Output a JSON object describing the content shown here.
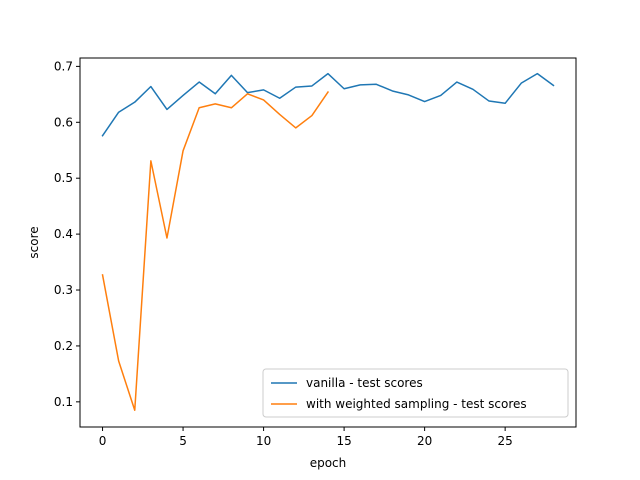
{
  "chart_data": {
    "type": "line",
    "title": "",
    "xlabel": "epoch",
    "ylabel": "score",
    "xlim": [
      -1.4,
      29.4
    ],
    "ylim": [
      0.055,
      0.715
    ],
    "xticks": [
      0,
      5,
      10,
      15,
      20,
      25
    ],
    "xtick_labels": [
      "0",
      "5",
      "10",
      "15",
      "20",
      "25"
    ],
    "yticks": [
      0.1,
      0.2,
      0.3,
      0.4,
      0.5,
      0.6,
      0.7
    ],
    "ytick_labels": [
      "0.1",
      "0.2",
      "0.3",
      "0.4",
      "0.5",
      "0.6",
      "0.7"
    ],
    "grid": false,
    "legend_position": "lower-right",
    "series": [
      {
        "name": "vanilla - test scores",
        "color": "#1f77b4",
        "x": [
          0,
          1,
          2,
          3,
          4,
          5,
          6,
          7,
          8,
          9,
          10,
          11,
          12,
          13,
          14,
          15,
          16,
          17,
          18,
          19,
          20,
          21,
          22,
          23,
          24,
          25,
          26,
          27,
          28
        ],
        "values": [
          0.576,
          0.618,
          0.636,
          0.664,
          0.623,
          0.648,
          0.672,
          0.651,
          0.684,
          0.653,
          0.658,
          0.643,
          0.663,
          0.665,
          0.687,
          0.66,
          0.667,
          0.668,
          0.656,
          0.649,
          0.637,
          0.648,
          0.672,
          0.659,
          0.638,
          0.634,
          0.67,
          0.687,
          0.666
        ]
      },
      {
        "name": "with weighted sampling - test scores",
        "color": "#ff7f0e",
        "x": [
          0,
          1,
          2,
          3,
          4,
          5,
          6,
          7,
          8,
          9,
          10,
          11,
          12,
          13,
          14
        ],
        "values": [
          0.327,
          0.173,
          0.085,
          0.531,
          0.393,
          0.549,
          0.626,
          0.633,
          0.626,
          0.651,
          0.64,
          0.614,
          0.59,
          0.612,
          0.654
        ]
      }
    ]
  }
}
